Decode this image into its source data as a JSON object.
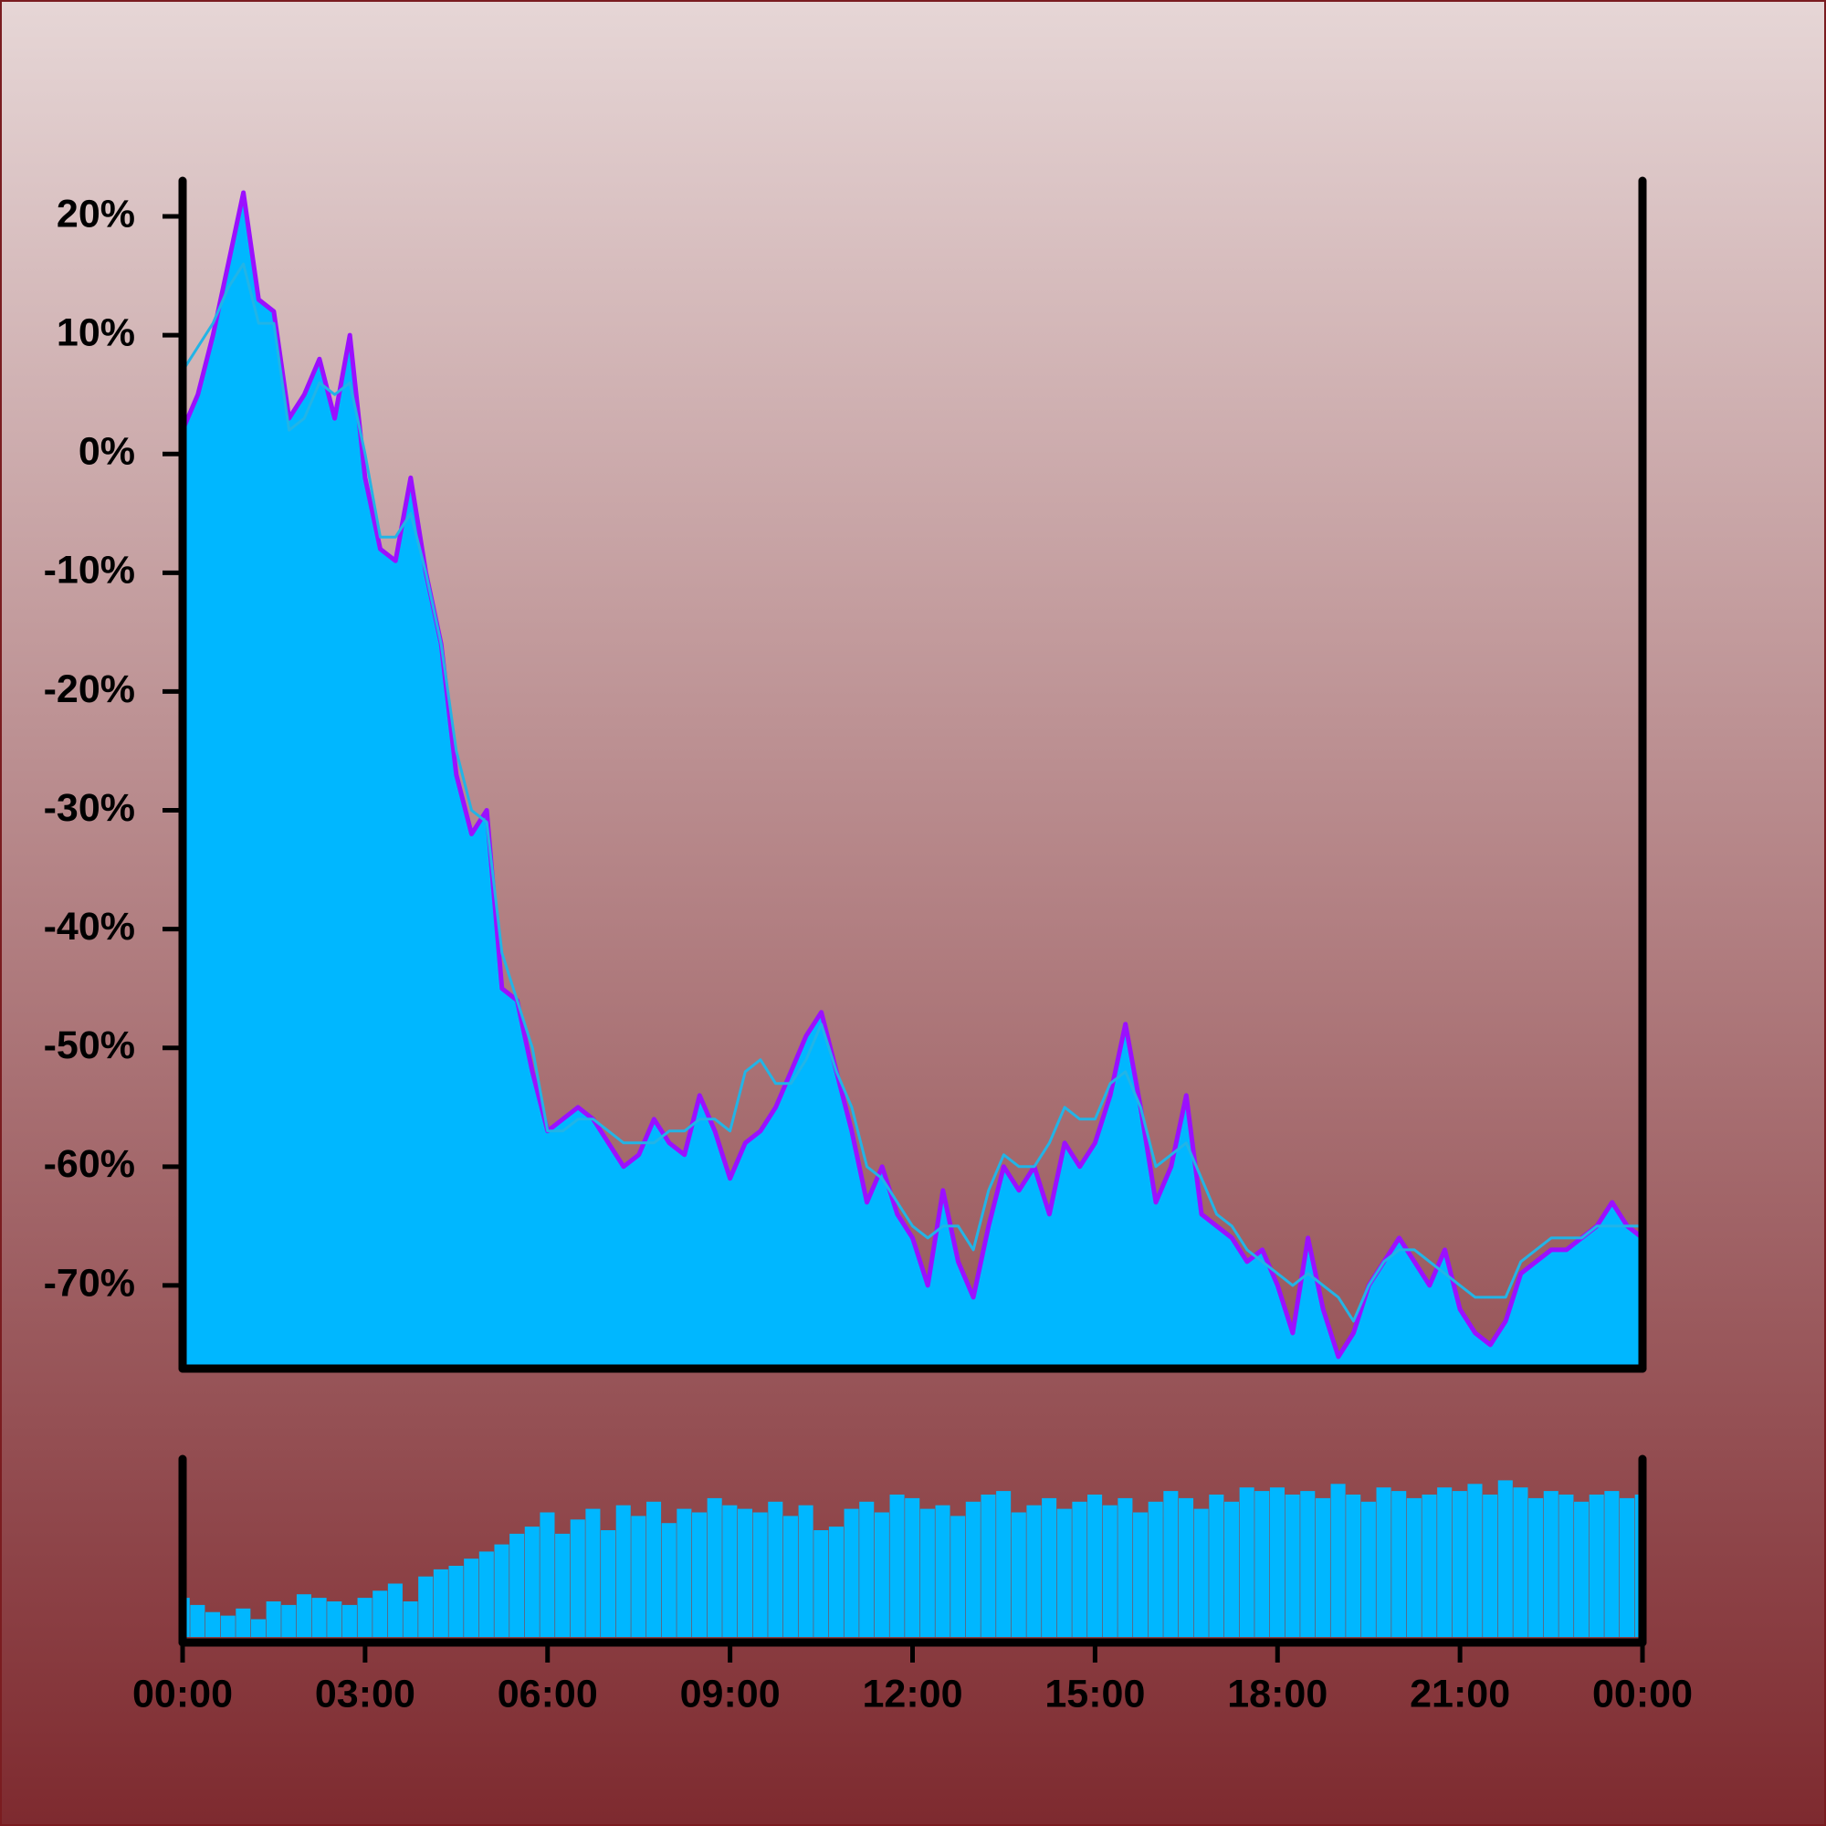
{
  "chart_data": {
    "type": "line",
    "x": [
      0,
      0.25,
      0.5,
      0.75,
      1,
      1.25,
      1.5,
      1.75,
      2,
      2.25,
      2.5,
      2.75,
      3,
      3.25,
      3.5,
      3.75,
      4,
      4.25,
      4.5,
      4.75,
      5,
      5.25,
      5.5,
      5.75,
      6,
      6.25,
      6.5,
      6.75,
      7,
      7.25,
      7.5,
      7.75,
      8,
      8.25,
      8.5,
      8.75,
      9,
      9.25,
      9.5,
      9.75,
      10,
      10.25,
      10.5,
      10.75,
      11,
      11.25,
      11.5,
      11.75,
      12,
      12.25,
      12.5,
      12.75,
      13,
      13.25,
      13.5,
      13.75,
      14,
      14.25,
      14.5,
      14.75,
      15,
      15.25,
      15.5,
      15.75,
      16,
      16.25,
      16.5,
      16.75,
      17,
      17.25,
      17.5,
      17.75,
      18,
      18.25,
      18.5,
      18.75,
      19,
      19.25,
      19.5,
      19.75,
      20,
      20.25,
      20.5,
      20.75,
      21,
      21.25,
      21.5,
      21.75,
      22,
      22.25,
      22.5,
      22.75,
      23,
      23.25,
      23.5,
      23.75,
      24
    ],
    "series": [
      {
        "color": "#9b10ff",
        "fill": "#00b7ff",
        "values": [
          2,
          5,
          10,
          16,
          22,
          13,
          12,
          3,
          5,
          8,
          3,
          10,
          -2,
          -8,
          -9,
          -2,
          -10,
          -16,
          -27,
          -32,
          -30,
          -45,
          -46,
          -52,
          -57,
          -56,
          -55,
          -56,
          -58,
          -60,
          -59,
          -56,
          -58,
          -59,
          -54,
          -57,
          -61,
          -58,
          -57,
          -55,
          -52,
          -49,
          -47,
          -52,
          -57,
          -63,
          -60,
          -64,
          -66,
          -70,
          -62,
          -68,
          -71,
          -65,
          -60,
          -62,
          -60,
          -64,
          -58,
          -60,
          -58,
          -54,
          -48,
          -55,
          -63,
          -60,
          -54,
          -64,
          -65,
          -66,
          -68,
          -67,
          -70,
          -74,
          -66,
          -72,
          -76,
          -74,
          -70,
          -68,
          -66,
          -68,
          -70,
          -67,
          -72,
          -74,
          -75,
          -73,
          -69,
          -68,
          -67,
          -67,
          -66,
          -65,
          -63,
          -65,
          -66
        ]
      },
      {
        "color": "#22b4e6",
        "values": [
          7,
          9,
          11,
          14,
          16,
          11,
          11,
          2,
          3,
          6,
          5,
          6,
          0,
          -7,
          -7,
          -5,
          -10,
          -16,
          -25,
          -30,
          -31,
          -42,
          -46,
          -50,
          -57,
          -57,
          -56,
          -56,
          -57,
          -58,
          -58,
          -58,
          -57,
          -57,
          -56,
          -56,
          -57,
          -52,
          -51,
          -53,
          -53,
          -51,
          -48,
          -52,
          -55,
          -60,
          -61,
          -63,
          -65,
          -66,
          -65,
          -65,
          -67,
          -62,
          -59,
          -60,
          -60,
          -58,
          -55,
          -56,
          -56,
          -53,
          -52,
          -55,
          -60,
          -59,
          -58,
          -61,
          -64,
          -65,
          -67,
          -68,
          -69,
          -70,
          -69,
          -70,
          -71,
          -73,
          -70,
          -68,
          -67,
          -67,
          -68,
          -69,
          -70,
          -71,
          -71,
          -71,
          -68,
          -67,
          -66,
          -66,
          -66,
          -65,
          -65,
          -65,
          -65
        ]
      }
    ],
    "volume": {
      "type": "bar",
      "color": "#00b7ff",
      "ylim": [
        0,
        100
      ],
      "values": [
        22,
        18,
        14,
        12,
        16,
        10,
        20,
        18,
        24,
        22,
        20,
        18,
        22,
        26,
        30,
        20,
        34,
        38,
        40,
        44,
        48,
        52,
        58,
        62,
        70,
        58,
        66,
        72,
        60,
        74,
        68,
        76,
        64,
        72,
        70,
        78,
        74,
        72,
        70,
        76,
        68,
        74,
        60,
        62,
        72,
        76,
        70,
        80,
        78,
        72,
        74,
        68,
        76,
        80,
        82,
        70,
        74,
        78,
        72,
        76,
        80,
        74,
        78,
        70,
        76,
        82,
        78,
        72,
        80,
        76,
        84,
        82,
        84,
        80,
        82,
        78,
        86,
        80,
        76,
        84,
        82,
        78,
        80,
        84,
        82,
        86,
        80,
        88,
        84,
        78,
        82,
        80,
        76,
        80,
        82,
        78,
        80
      ]
    },
    "xlim": [
      0,
      24
    ],
    "xticks": [
      {
        "value": 0,
        "label": "00:00"
      },
      {
        "value": 3,
        "label": "03:00"
      },
      {
        "value": 6,
        "label": "06:00"
      },
      {
        "value": 9,
        "label": "09:00"
      },
      {
        "value": 12,
        "label": "12:00"
      },
      {
        "value": 15,
        "label": "15:00"
      },
      {
        "value": 18,
        "label": "18:00"
      },
      {
        "value": 21,
        "label": "21:00"
      },
      {
        "value": 24,
        "label": "00:00"
      }
    ],
    "ylim": [
      -77,
      23
    ],
    "yticks": [
      {
        "value": -70,
        "label": "-70%"
      },
      {
        "value": -60,
        "label": "-60%"
      },
      {
        "value": -50,
        "label": "-50%"
      },
      {
        "value": -40,
        "label": "-40%"
      },
      {
        "value": -30,
        "label": "-30%"
      },
      {
        "value": -20,
        "label": "-20%"
      },
      {
        "value": -10,
        "label": "-10%"
      },
      {
        "value": 0,
        "label": "0%"
      },
      {
        "value": 10,
        "label": "10%"
      },
      {
        "value": 20,
        "label": "20%"
      }
    ]
  }
}
